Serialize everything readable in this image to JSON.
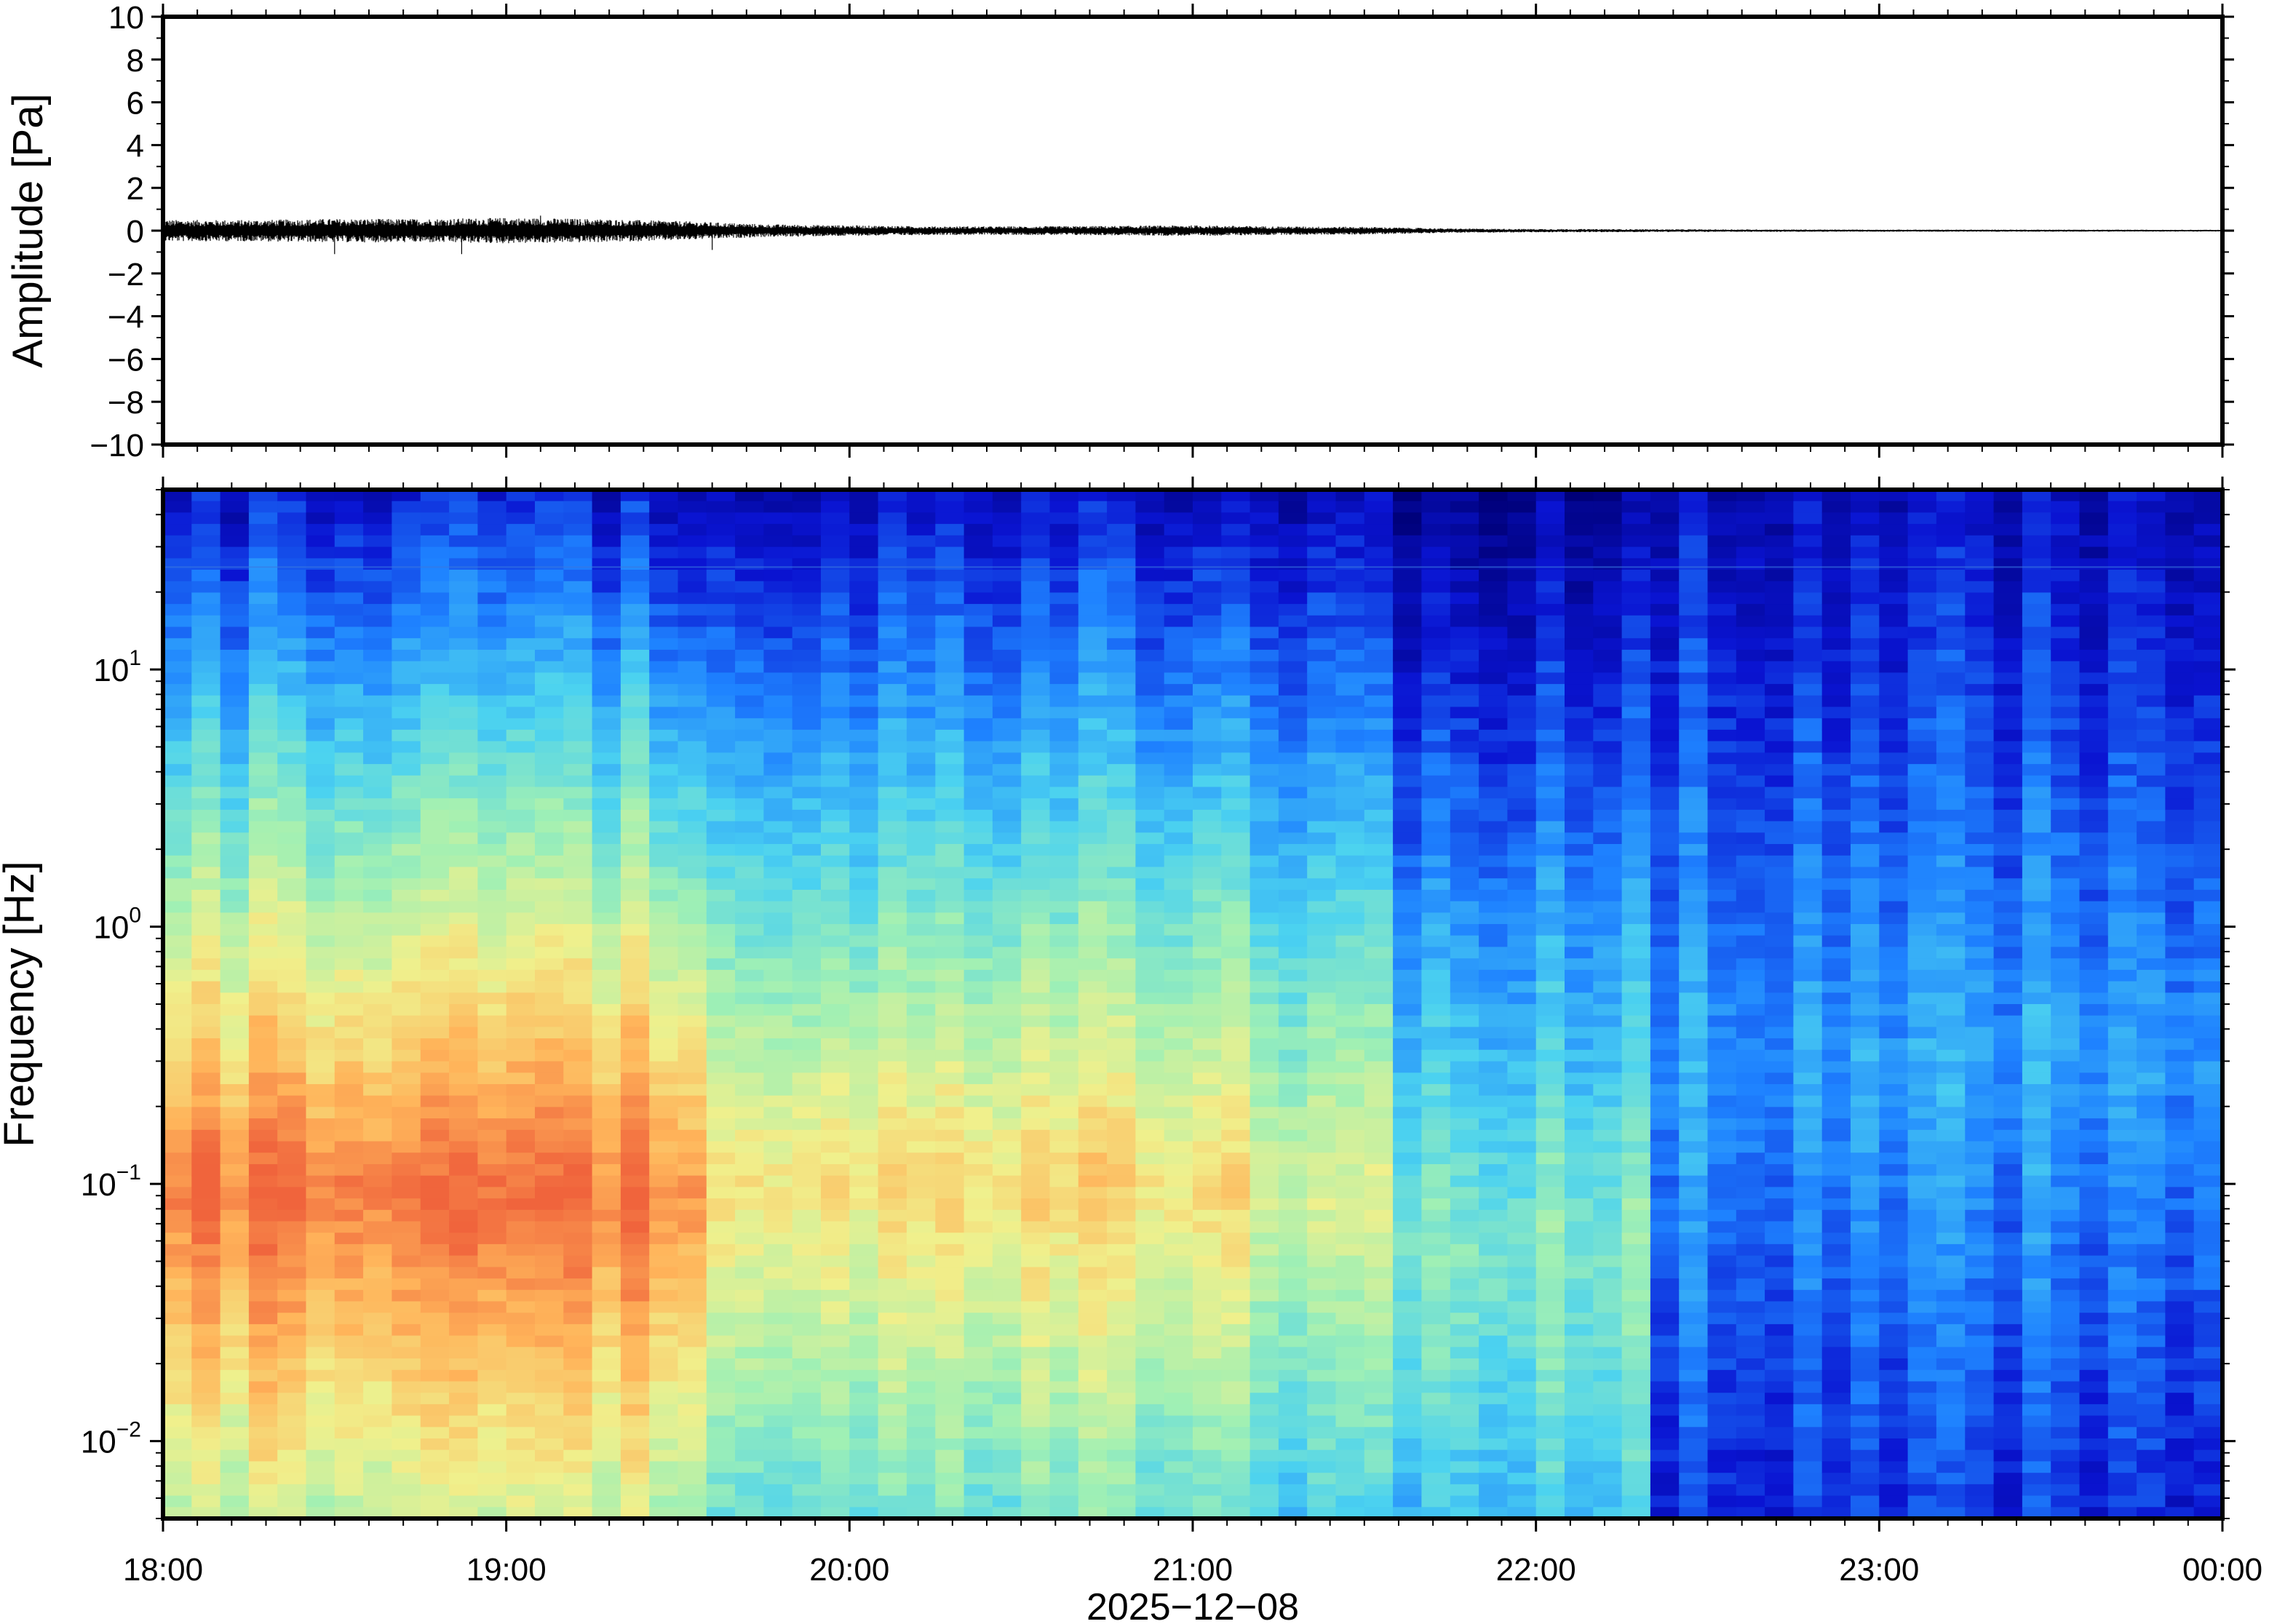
{
  "chart_data": [
    {
      "type": "line",
      "ylabel": "Amplitude [Pa]",
      "ylim": [
        -10,
        10
      ],
      "yticks": [
        "10",
        "8",
        "6",
        "4",
        "2",
        "0",
        "−2",
        "−4",
        "−6",
        "−8",
        "−10"
      ],
      "ytick_values": [
        10,
        8,
        6,
        4,
        2,
        0,
        -2,
        -4,
        -6,
        -8,
        -10
      ],
      "xlim": [
        "18:00",
        "00:00"
      ],
      "grid": false,
      "series": [
        {
          "color": "#000000",
          "envelope_x_hours": [
            18.0,
            18.25,
            18.5,
            18.75,
            19.0,
            19.25,
            19.5,
            19.75,
            20.0,
            20.25,
            20.5,
            20.75,
            21.0,
            21.25,
            21.5,
            21.75,
            22.0,
            22.5,
            23.0,
            23.5,
            24.0
          ],
          "envelope_amplitude_pa": [
            0.5,
            0.5,
            0.55,
            0.55,
            0.6,
            0.55,
            0.45,
            0.3,
            0.25,
            0.2,
            0.2,
            0.22,
            0.25,
            0.2,
            0.18,
            0.1,
            0.08,
            0.06,
            0.05,
            0.05,
            0.04
          ],
          "notable_spikes": [
            {
              "x_hours": 18.5,
              "min_pa": -1.1
            },
            {
              "x_hours": 18.87,
              "min_pa": -1.1
            },
            {
              "x_hours": 19.1,
              "max_pa": 0.7
            },
            {
              "x_hours": 19.6,
              "min_pa": -0.9
            }
          ]
        }
      ]
    },
    {
      "type": "heatmap",
      "ylabel": "Frequency [Hz]",
      "yscale": "log",
      "ylim": [
        0.005,
        50
      ],
      "yticks": [
        {
          "value": 0.01,
          "base": "10",
          "exp": "−2"
        },
        {
          "value": 0.1,
          "base": "10",
          "exp": "−1"
        },
        {
          "value": 1,
          "base": "10",
          "exp": "0"
        },
        {
          "value": 10,
          "base": "10",
          "exp": "1"
        }
      ],
      "xlabel": "2025−12−08",
      "xticks": [
        "18:00",
        "19:00",
        "20:00",
        "21:00",
        "22:00",
        "23:00",
        "00:00"
      ],
      "xtick_hours": [
        18,
        19,
        20,
        21,
        22,
        23,
        24
      ],
      "colormap": [
        "#000078",
        "#0a14d2",
        "#1e82ff",
        "#4bd2f0",
        "#a0f0b4",
        "#f0f08c",
        "#ffb45a",
        "#f0643c"
      ],
      "segments": [
        {
          "start_hour": 18.0,
          "end_hour": 19.55,
          "noise_level": 1.0,
          "peak_freq_hz": 0.09
        },
        {
          "start_hour": 19.55,
          "end_hour": 21.2,
          "noise_level": 0.8,
          "peak_freq_hz": 0.1
        },
        {
          "start_hour": 21.2,
          "end_hour": 21.55,
          "noise_level": 0.7,
          "peak_freq_hz": 0.1
        },
        {
          "start_hour": 21.55,
          "end_hour": 22.35,
          "noise_level": 0.55,
          "peak_freq_hz": 0.05
        },
        {
          "start_hour": 22.35,
          "end_hour": 24.0,
          "noise_level": 0.35,
          "peak_freq_hz": 0.3
        }
      ],
      "notes": [
        "faint constant line near 25 Hz",
        "dark blue (low power) above ~1 Hz after 22:20"
      ]
    }
  ]
}
